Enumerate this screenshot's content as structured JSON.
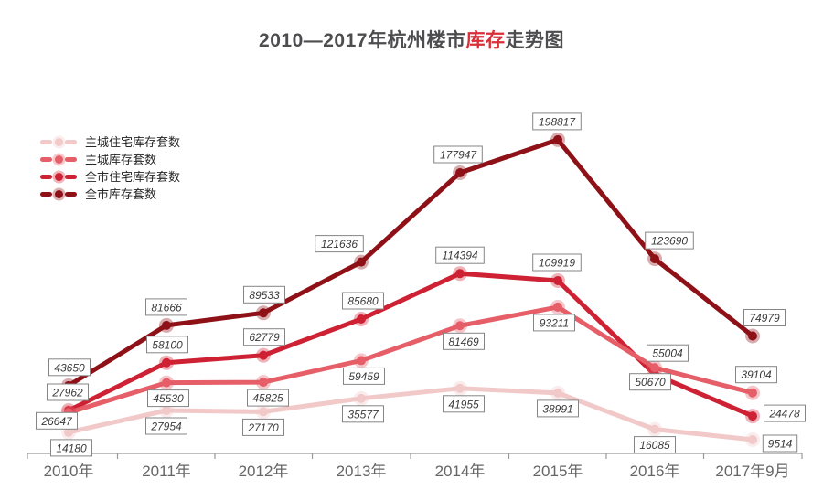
{
  "title": {
    "prefix": "2010—2017年杭州楼市",
    "accent": "库存",
    "suffix": "走势图",
    "accent_color": "#d92f38",
    "text_color": "#4d4d4f"
  },
  "chart_data": {
    "type": "line",
    "title": "2010—2017年杭州楼市库存走势图",
    "categories": [
      "2010年",
      "2011年",
      "2012年",
      "2013年",
      "2014年",
      "2015年",
      "2016年",
      "2017年9月"
    ],
    "series": [
      {
        "name": "主城住宅库存套数",
        "color": "#f1c9c9",
        "values": [
          14180,
          27954,
          27170,
          35577,
          41955,
          38991,
          16085,
          9514
        ]
      },
      {
        "name": "主城库存套数",
        "color": "#e55e68",
        "values": [
          26647,
          45530,
          45825,
          59459,
          81469,
          93211,
          55004,
          39104
        ]
      },
      {
        "name": "全市住宅库存套数",
        "color": "#ce2133",
        "values": [
          27962,
          58100,
          62779,
          85680,
          114394,
          109919,
          50670,
          24478
        ]
      },
      {
        "name": "全市库存套数",
        "color": "#8e1118",
        "values": [
          43650,
          81666,
          89533,
          121636,
          177947,
          198817,
          123690,
          74979
        ]
      }
    ],
    "legend_position": "top-left",
    "grid": false,
    "y_axis_visible": false,
    "ylim": [
      0,
      220000
    ],
    "data_labels": true,
    "axis_color": "#999999",
    "label_box": {
      "bg": "#ffffff",
      "border": "#858585",
      "text_color": "#3a3a3a"
    }
  }
}
